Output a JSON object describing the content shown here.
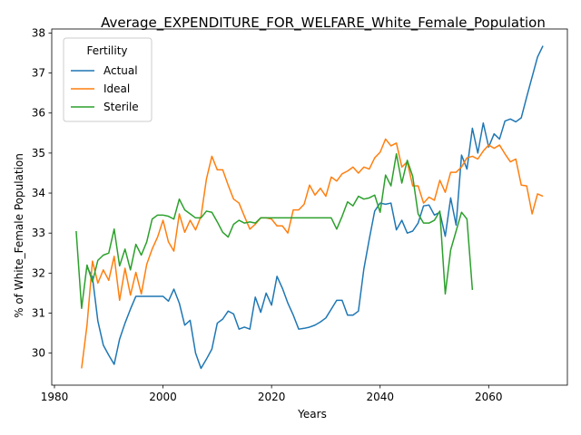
{
  "chart_data": {
    "type": "line",
    "title": "Average_EXPENDITURE_FOR_WELFARE_White_Female_Population",
    "xlabel": "Years",
    "ylabel": "% of White_Female Population",
    "xlim": [
      1979.5,
      2074.5
    ],
    "ylim": [
      29.2,
      38.1
    ],
    "xticks": [
      1980,
      2000,
      2020,
      2040,
      2060
    ],
    "yticks": [
      30,
      31,
      32,
      33,
      34,
      35,
      36,
      37,
      38
    ],
    "grid": false,
    "legend": {
      "title": "Fertility",
      "placement": "top-left"
    },
    "series": [
      {
        "name": "Actual",
        "color": "#1f77b4",
        "x": [
          1986,
          1987,
          1988,
          1989,
          1990,
          1991,
          1992,
          1993,
          1994,
          1995,
          1996,
          1997,
          1998,
          1999,
          2000,
          2001,
          2002,
          2003,
          2004,
          2005,
          2006,
          2007,
          2008,
          2009,
          2010,
          2011,
          2012,
          2013,
          2014,
          2015,
          2016,
          2017,
          2018,
          2019,
          2020,
          2021,
          2022,
          2023,
          2024,
          2025,
          2026,
          2027,
          2028,
          2029,
          2030,
          2031,
          2032,
          2033,
          2034,
          2035,
          2036,
          2037,
          2038,
          2039,
          2040,
          2041,
          2042,
          2043,
          2044,
          2045,
          2046,
          2047,
          2048,
          2049,
          2050,
          2051,
          2052,
          2053,
          2054,
          2055,
          2056,
          2057,
          2058,
          2059,
          2060,
          2061,
          2062,
          2063,
          2064,
          2065,
          2066,
          2067,
          2068,
          2069,
          2070
        ],
        "values": [
          32.15,
          31.9,
          30.8,
          30.2,
          29.95,
          29.72,
          30.35,
          30.75,
          31.1,
          31.42,
          31.42,
          31.42,
          31.42,
          31.42,
          31.42,
          31.3,
          31.6,
          31.25,
          30.7,
          30.82,
          30.0,
          29.62,
          29.85,
          30.1,
          30.75,
          30.85,
          31.05,
          30.98,
          30.6,
          30.65,
          30.6,
          31.4,
          31.02,
          31.5,
          31.2,
          31.92,
          31.62,
          31.25,
          30.95,
          30.6,
          30.62,
          30.65,
          30.7,
          30.78,
          30.88,
          31.1,
          31.32,
          31.32,
          30.95,
          30.95,
          31.05,
          32.1,
          32.85,
          33.55,
          33.75,
          33.72,
          33.75,
          33.08,
          33.32,
          33.0,
          33.05,
          33.25,
          33.68,
          33.7,
          33.45,
          33.52,
          32.92,
          33.88,
          33.2,
          34.95,
          34.6,
          35.62,
          35.0,
          35.75,
          35.15,
          35.48,
          35.35,
          35.8,
          35.85,
          35.78,
          35.88,
          36.4,
          36.9,
          37.4,
          37.68
        ]
      },
      {
        "name": "Ideal",
        "color": "#ff7f0e",
        "x": [
          1985,
          1986,
          1987,
          1988,
          1989,
          1990,
          1991,
          1992,
          1993,
          1994,
          1995,
          1996,
          1997,
          1998,
          1999,
          2000,
          2001,
          2002,
          2003,
          2004,
          2005,
          2006,
          2007,
          2008,
          2009,
          2010,
          2011,
          2012,
          2013,
          2014,
          2015,
          2016,
          2017,
          2018,
          2019,
          2020,
          2021,
          2022,
          2023,
          2024,
          2025,
          2026,
          2027,
          2028,
          2029,
          2030,
          2031,
          2032,
          2033,
          2034,
          2035,
          2036,
          2037,
          2038,
          2039,
          2040,
          2041,
          2042,
          2043,
          2044,
          2045,
          2046,
          2047,
          2048,
          2049,
          2050,
          2051,
          2052,
          2053,
          2054,
          2055,
          2056,
          2057,
          2058,
          2059,
          2060,
          2061,
          2062,
          2063,
          2064,
          2065,
          2066,
          2067,
          2068,
          2069,
          2070
        ],
        "values": [
          29.62,
          30.7,
          32.3,
          31.75,
          32.08,
          31.82,
          32.42,
          31.32,
          32.12,
          31.45,
          32.02,
          31.48,
          32.22,
          32.6,
          32.9,
          33.32,
          32.78,
          32.55,
          33.48,
          33.02,
          33.32,
          33.08,
          33.42,
          34.35,
          34.92,
          34.58,
          34.58,
          34.2,
          33.85,
          33.75,
          33.42,
          33.1,
          33.22,
          33.38,
          33.38,
          33.35,
          33.18,
          33.18,
          33.0,
          33.58,
          33.58,
          33.72,
          34.2,
          33.95,
          34.12,
          33.92,
          34.4,
          34.3,
          34.48,
          34.55,
          34.65,
          34.5,
          34.65,
          34.6,
          34.88,
          35.02,
          35.35,
          35.18,
          35.25,
          34.65,
          34.78,
          34.18,
          34.18,
          33.75,
          33.9,
          33.82,
          34.32,
          34.02,
          34.52,
          34.52,
          34.65,
          34.88,
          34.92,
          34.85,
          35.05,
          35.2,
          35.12,
          35.2,
          34.98,
          34.78,
          34.85,
          34.2,
          34.18,
          33.48,
          33.98,
          33.92
        ]
      },
      {
        "name": "Sterile",
        "color": "#2ca02c",
        "x": [
          1984,
          1985,
          1986,
          1987,
          1988,
          1989,
          1990,
          1991,
          1992,
          1993,
          1994,
          1995,
          1996,
          1997,
          1998,
          1999,
          2000,
          2001,
          2002,
          2003,
          2004,
          2005,
          2006,
          2007,
          2008,
          2009,
          2010,
          2011,
          2012,
          2013,
          2014,
          2015,
          2016,
          2017,
          2018,
          2019,
          2020,
          2021,
          2022,
          2023,
          2024,
          2025,
          2026,
          2027,
          2028,
          2029,
          2030,
          2031,
          2032,
          2033,
          2034,
          2035,
          2036,
          2037,
          2038,
          2039,
          2040,
          2041,
          2042,
          2043,
          2044,
          2045,
          2046,
          2047,
          2048,
          2049,
          2050,
          2051,
          2052,
          2053,
          2054,
          2055,
          2056,
          2057
        ],
        "values": [
          33.05,
          31.12,
          32.2,
          31.78,
          32.32,
          32.45,
          32.5,
          33.1,
          32.18,
          32.6,
          32.08,
          32.72,
          32.45,
          32.78,
          33.35,
          33.45,
          33.45,
          33.42,
          33.35,
          33.85,
          33.58,
          33.48,
          33.38,
          33.38,
          33.55,
          33.52,
          33.28,
          33.02,
          32.9,
          33.22,
          33.32,
          33.25,
          33.28,
          33.25,
          33.38,
          33.38,
          33.38,
          33.38,
          33.38,
          33.38,
          33.38,
          33.38,
          33.38,
          33.38,
          33.38,
          33.38,
          33.38,
          33.38,
          33.1,
          33.42,
          33.78,
          33.68,
          33.92,
          33.85,
          33.88,
          33.95,
          33.52,
          34.45,
          34.18,
          34.98,
          34.25,
          34.82,
          34.42,
          33.48,
          33.25,
          33.25,
          33.32,
          33.55,
          31.48,
          32.58,
          33.05,
          33.52,
          33.35,
          31.58
        ]
      }
    ]
  }
}
